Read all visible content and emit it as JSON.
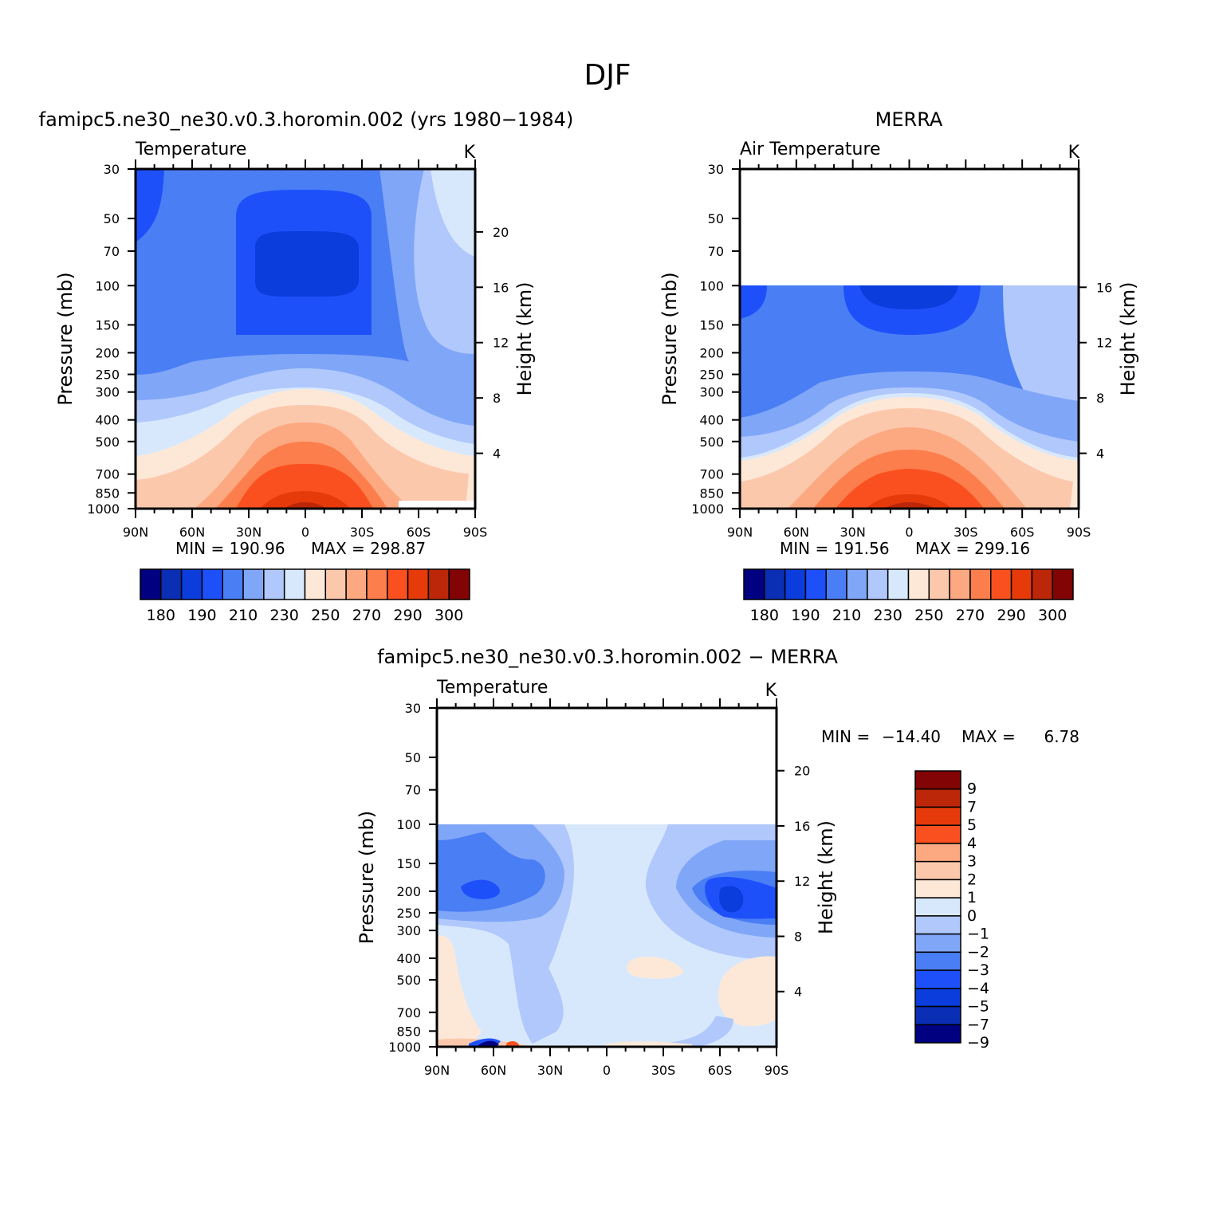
{
  "figure_title": "DJF",
  "colors": {
    "abs_scale": [
      "#000080",
      "#0a2eb4",
      "#0a3ddc",
      "#1e50fa",
      "#4a7ef4",
      "#80a6f8",
      "#b0c8fc",
      "#d8e8fc",
      "#fde8d8",
      "#fcc8ac",
      "#fca880",
      "#fc7e4c",
      "#fa5020",
      "#e63a0a",
      "#bb2708",
      "#820404"
    ],
    "diff_scale": [
      "#000080",
      "#0a2eb4",
      "#0a3ddc",
      "#1e50fa",
      "#4a7ef4",
      "#80a6f8",
      "#b0c8fc",
      "#d8e8fc",
      "#fde8d8",
      "#fcc8ac",
      "#fca880",
      "#fa5020",
      "#e63a0a",
      "#bb2708",
      "#820404"
    ]
  },
  "chart_data": [
    {
      "type": "heatmap",
      "title": "famipc5.ne30_ne30.v0.3.horomin.002 (yrs 1980−1984)",
      "variable_label": "Temperature",
      "units": "K",
      "ylabel": "Pressure (mb)",
      "ylabel_right": "Height (km)",
      "x_ticks": [
        "90N",
        "60N",
        "30N",
        "0",
        "30S",
        "60S",
        "90S"
      ],
      "x_values": [
        90,
        60,
        30,
        0,
        -30,
        -60,
        -90
      ],
      "xlim": [
        90,
        -90
      ],
      "y_ticks": [
        30,
        50,
        70,
        100,
        150,
        200,
        250,
        300,
        400,
        500,
        700,
        850,
        1000
      ],
      "ylim": [
        1000,
        30
      ],
      "y_scale": "log",
      "height_ticks": [
        4,
        8,
        12,
        16,
        20
      ],
      "min_text": "MIN = 190.96",
      "max_text": "MAX = 298.87",
      "colorbar_labels": [
        "180",
        "190",
        "210",
        "230",
        "250",
        "270",
        "290",
        "300"
      ],
      "contour_levels": [
        175,
        180,
        185,
        190,
        200,
        210,
        220,
        230,
        240,
        250,
        260,
        270,
        280,
        290,
        295,
        300
      ]
    },
    {
      "type": "heatmap",
      "title": "MERRA",
      "variable_label": "Air Temperature",
      "units": "K",
      "ylabel": "Pressure (mb)",
      "ylabel_right": "Height (km)",
      "x_ticks": [
        "90N",
        "60N",
        "30N",
        "0",
        "30S",
        "60S",
        "90S"
      ],
      "x_values": [
        90,
        60,
        30,
        0,
        -30,
        -60,
        -90
      ],
      "xlim": [
        90,
        -90
      ],
      "y_ticks": [
        30,
        50,
        70,
        100,
        150,
        200,
        250,
        300,
        400,
        500,
        700,
        850,
        1000
      ],
      "ylim": [
        1000,
        30
      ],
      "y_scale": "log",
      "data_top_pressure": 100,
      "height_ticks": [
        4,
        8,
        12,
        16
      ],
      "min_text": "MIN = 191.56",
      "max_text": "MAX = 299.16",
      "colorbar_labels": [
        "180",
        "190",
        "210",
        "230",
        "250",
        "270",
        "290",
        "300"
      ],
      "contour_levels": [
        175,
        180,
        185,
        190,
        200,
        210,
        220,
        230,
        240,
        250,
        260,
        270,
        280,
        290,
        295,
        300
      ]
    },
    {
      "type": "heatmap",
      "title": "famipc5.ne30_ne30.v0.3.horomin.002 − MERRA",
      "variable_label": "Temperature",
      "units": "K",
      "ylabel": "Pressure (mb)",
      "ylabel_right": "Height (km)",
      "x_ticks": [
        "90N",
        "60N",
        "30N",
        "0",
        "30S",
        "60S",
        "90S"
      ],
      "x_values": [
        90,
        60,
        30,
        0,
        -30,
        -60,
        -90
      ],
      "xlim": [
        90,
        -90
      ],
      "y_ticks": [
        30,
        50,
        70,
        100,
        150,
        200,
        250,
        300,
        400,
        500,
        700,
        850,
        1000
      ],
      "ylim": [
        1000,
        30
      ],
      "y_scale": "log",
      "data_top_pressure": 100,
      "height_ticks": [
        4,
        8,
        12,
        16,
        20
      ],
      "min_label": "MIN =",
      "min_value": "−14.40",
      "max_label": "MAX =",
      "max_value": "6.78",
      "colorbar_labels": [
        "9",
        "7",
        "5",
        "4",
        "3",
        "2",
        "1",
        "0",
        "−1",
        "−2",
        "−3",
        "−4",
        "−5",
        "−7",
        "−9"
      ],
      "contour_levels": [
        -9,
        -7,
        -5,
        -4,
        -3,
        -2,
        -1,
        0,
        1,
        2,
        3,
        4,
        5,
        7,
        9
      ]
    }
  ]
}
